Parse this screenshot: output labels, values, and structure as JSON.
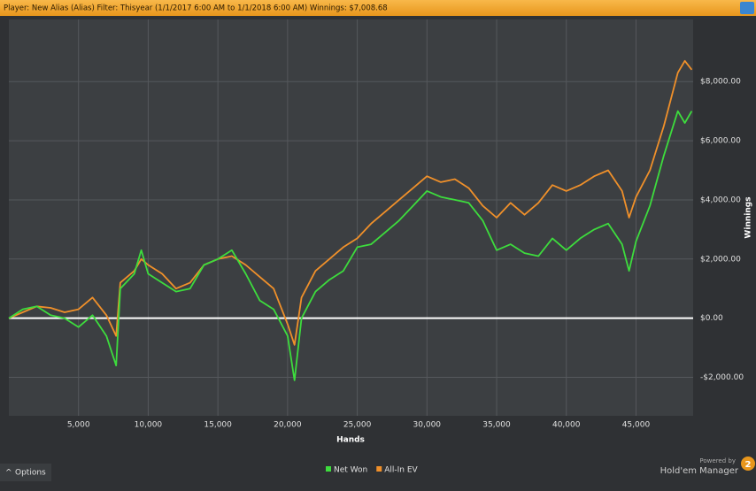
{
  "header": {
    "text": "Player: New Alias (Alias) Filter: Thisyear (1/1/2017 6:00 AM to 1/1/2018 6:00 AM) Winnings: $7,008.68"
  },
  "footer": {
    "options": "Options",
    "powered_by": "Powered by",
    "brand": "Hold'em Manager",
    "badge": "2"
  },
  "chart_data": {
    "type": "line",
    "x_label": "Hands",
    "y_label": "Winnings",
    "x": [
      0,
      1000,
      2000,
      3000,
      4000,
      5000,
      6000,
      7000,
      7700,
      8000,
      9000,
      9500,
      10000,
      11000,
      12000,
      13000,
      14000,
      15000,
      16000,
      17000,
      18000,
      19000,
      20000,
      20500,
      21000,
      22000,
      23000,
      24000,
      25000,
      26000,
      27000,
      28000,
      29000,
      30000,
      31000,
      32000,
      33000,
      34000,
      35000,
      36000,
      37000,
      38000,
      39000,
      40000,
      41000,
      42000,
      43000,
      44000,
      44500,
      45000,
      46000,
      47000,
      48000,
      48500,
      49000
    ],
    "series": [
      {
        "name": "Net Won",
        "color": "#3ddc3d",
        "values": [
          0,
          300,
          400,
          100,
          0,
          -300,
          100,
          -600,
          -1600,
          1000,
          1500,
          2300,
          1500,
          1200,
          900,
          1000,
          1800,
          2000,
          2300,
          1500,
          600,
          300,
          -600,
          -2100,
          0,
          900,
          1300,
          1600,
          2400,
          2500,
          2900,
          3300,
          3800,
          4300,
          4100,
          4000,
          3900,
          3300,
          2300,
          2500,
          2200,
          2100,
          2700,
          2300,
          2700,
          3000,
          3200,
          2500,
          1600,
          2600,
          3800,
          5500,
          7000,
          6600,
          7000
        ]
      },
      {
        "name": "All-In EV",
        "color": "#f0902a",
        "values": [
          0,
          200,
          400,
          350,
          200,
          300,
          700,
          100,
          -600,
          1200,
          1600,
          2000,
          1800,
          1500,
          1000,
          1200,
          1800,
          2000,
          2100,
          1800,
          1400,
          1000,
          -200,
          -900,
          700,
          1600,
          2000,
          2400,
          2700,
          3200,
          3600,
          4000,
          4400,
          4800,
          4600,
          4700,
          4400,
          3800,
          3400,
          3900,
          3500,
          3900,
          4500,
          4300,
          4500,
          4800,
          5000,
          4300,
          3400,
          4100,
          5000,
          6500,
          8300,
          8700,
          8400
        ]
      }
    ],
    "xlim": [
      0,
      49100
    ],
    "ylim": [
      -3300,
      10100
    ],
    "xticks": [
      {
        "value": 5000,
        "label": "5,000"
      },
      {
        "value": 10000,
        "label": "10,000"
      },
      {
        "value": 15000,
        "label": "15,000"
      },
      {
        "value": 20000,
        "label": "20,000"
      },
      {
        "value": 25000,
        "label": "25,000"
      },
      {
        "value": 30000,
        "label": "30,000"
      },
      {
        "value": 35000,
        "label": "35,000"
      },
      {
        "value": 40000,
        "label": "40,000"
      },
      {
        "value": 45000,
        "label": "45,000"
      }
    ],
    "yticks": [
      {
        "value": -2000,
        "label": "-$2,000.00"
      },
      {
        "value": 0,
        "label": "$0.00"
      },
      {
        "value": 2000,
        "label": "$2,000.00"
      },
      {
        "value": 4000,
        "label": "$4,000.00"
      },
      {
        "value": 6000,
        "label": "$6,000.00"
      },
      {
        "value": 8000,
        "label": "$8,000.00"
      }
    ],
    "grid": true,
    "zero_line_color": "#ffffff"
  }
}
